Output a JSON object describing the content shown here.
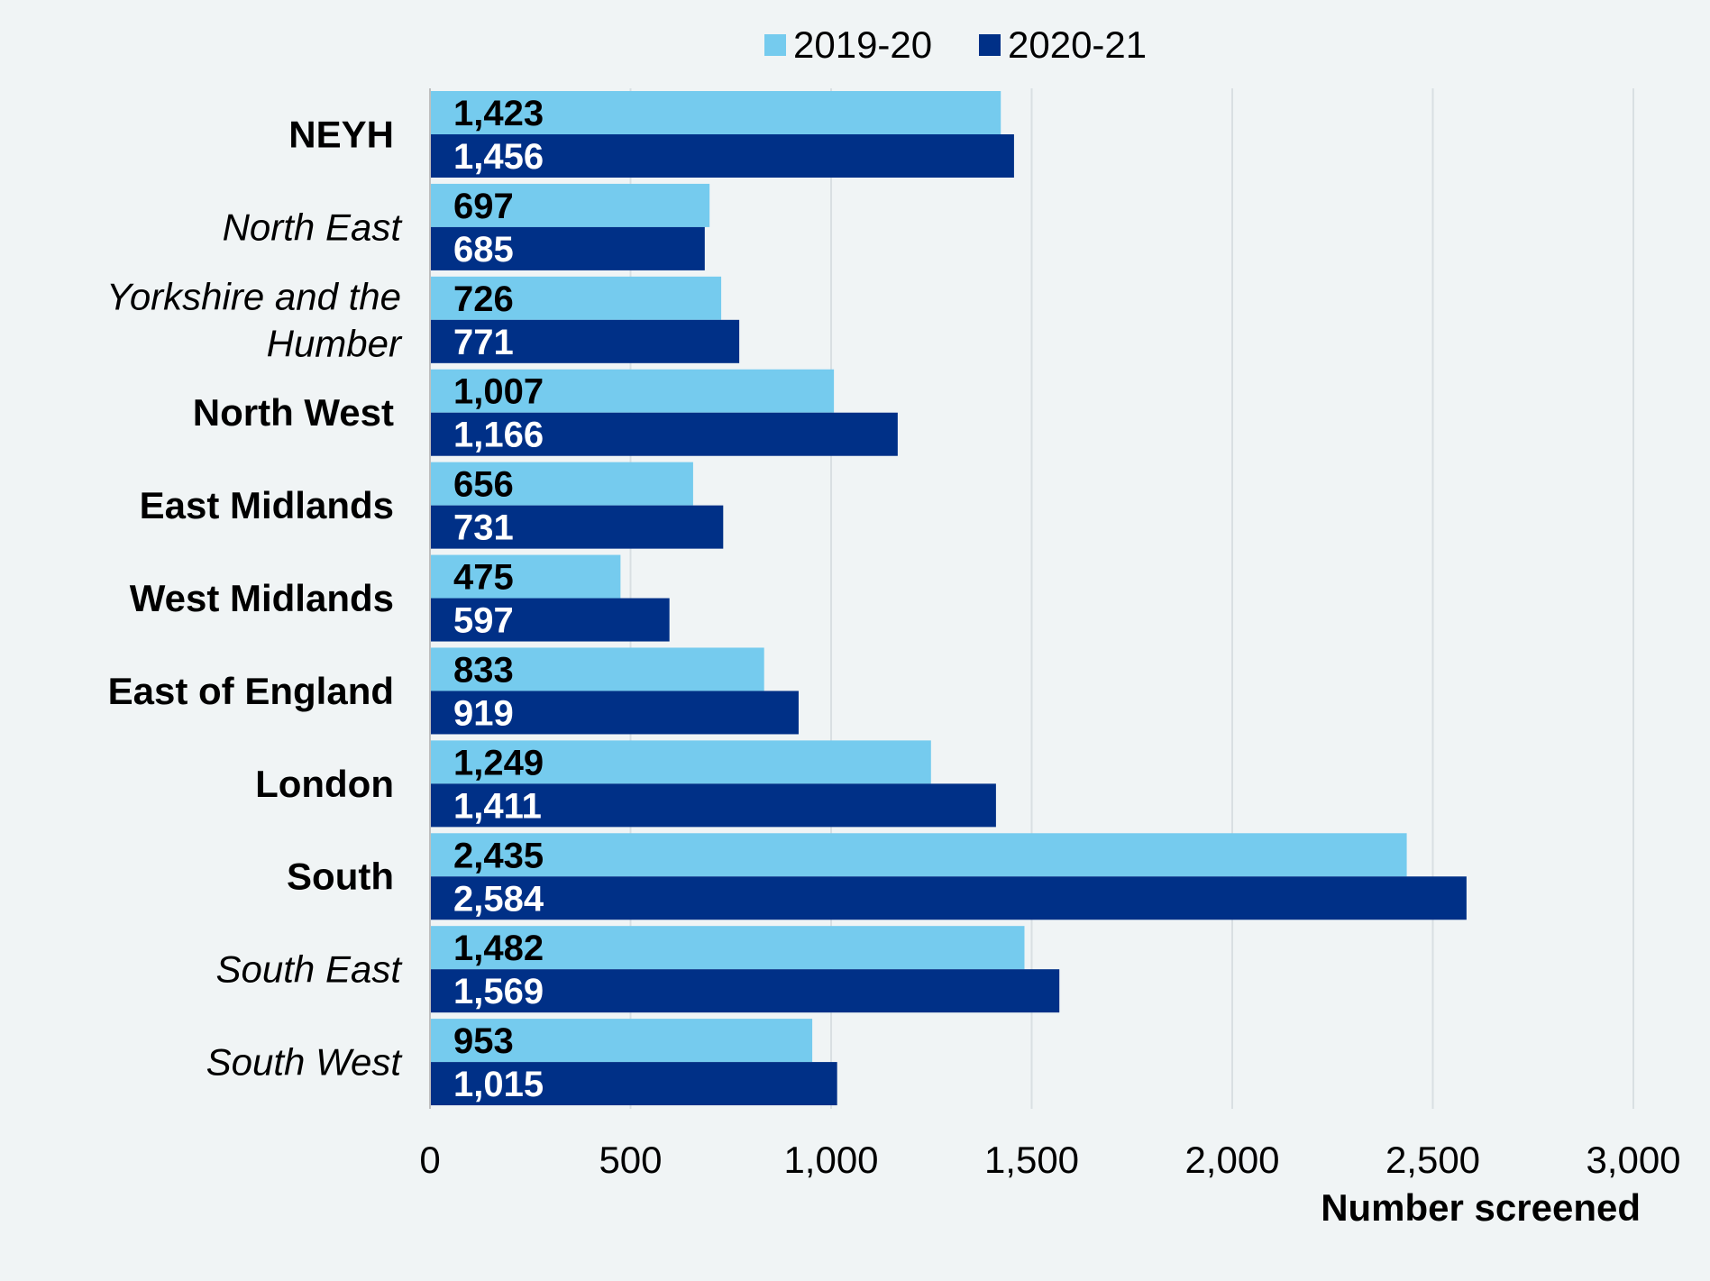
{
  "chart_data": {
    "type": "bar",
    "orientation": "horizontal",
    "categories": [
      "NEYH",
      "North East",
      "Yorkshire and the Humber",
      "North West",
      "East Midlands",
      "West Midlands",
      "East of England",
      "London",
      "South",
      "South East",
      "South West"
    ],
    "category_lines": [
      [
        "NEYH"
      ],
      [
        "North East"
      ],
      [
        "Yorkshire and the",
        "Humber"
      ],
      [
        "North West"
      ],
      [
        "East Midlands"
      ],
      [
        "West Midlands"
      ],
      [
        "East of England"
      ],
      [
        "London"
      ],
      [
        "South"
      ],
      [
        "South East"
      ],
      [
        "South West"
      ]
    ],
    "category_style": [
      "bold",
      "italic",
      "italic",
      "bold",
      "bold",
      "bold",
      "bold",
      "bold",
      "bold",
      "italic",
      "italic"
    ],
    "series": [
      {
        "name": "2019-20",
        "color": "#75cbee",
        "label_color": "#000000",
        "values": [
          1423,
          697,
          726,
          1007,
          656,
          475,
          833,
          1249,
          2435,
          1482,
          953
        ]
      },
      {
        "name": "2020-21",
        "color": "#003087",
        "label_color": "#ffffff",
        "values": [
          1456,
          685,
          771,
          1166,
          731,
          597,
          919,
          1411,
          2584,
          1569,
          1015
        ]
      }
    ],
    "data_labels": [
      [
        "1,423",
        "697",
        "726",
        "1,007",
        "656",
        "475",
        "833",
        "1,249",
        "2,435",
        "1,482",
        "953"
      ],
      [
        "1,456",
        "685",
        "771",
        "1,166",
        "731",
        "597",
        "919",
        "1,411",
        "2,584",
        "1,569",
        "1,015"
      ]
    ],
    "xlabel": "Number screened",
    "ylabel": "",
    "xlim": [
      0,
      3000
    ],
    "xticks": [
      0,
      500,
      1000,
      1500,
      2000,
      2500,
      3000
    ],
    "xtick_labels": [
      "0",
      "500",
      "1,000",
      "1,500",
      "2,000",
      "2,500",
      "3,000"
    ],
    "grid": "vertical",
    "legend_position": "top-center"
  }
}
